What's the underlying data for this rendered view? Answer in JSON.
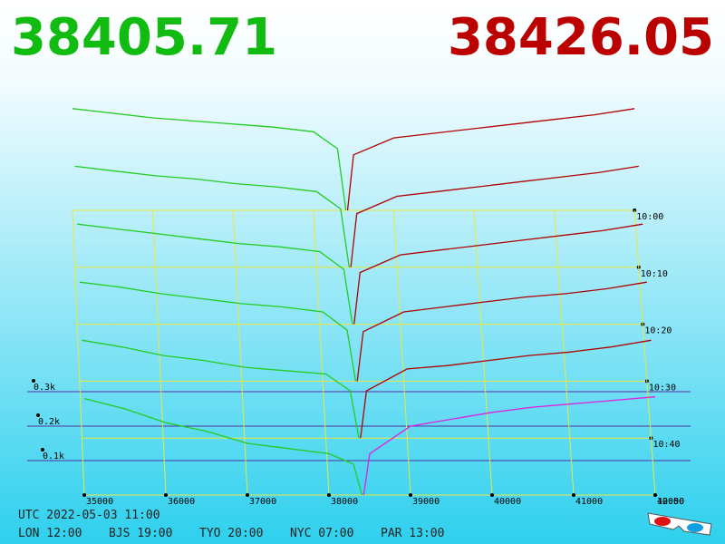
{
  "chart_data": {
    "type": "depth3d",
    "bid_price": 38405.71,
    "ask_price": 38426.05,
    "xticks": [
      35000,
      36000,
      37000,
      38000,
      39000,
      40000,
      41000,
      42000
    ],
    "zticks": [
      {
        "value": 100,
        "label": "0.1k"
      },
      {
        "value": 200,
        "label": "0.2k"
      },
      {
        "value": 300,
        "label": "0.3k"
      }
    ],
    "times": [
      "10:00",
      "10:10",
      "10:20",
      "10:30",
      "10:40",
      "10:50"
    ],
    "bids": {
      "color": "#22cc22",
      "prices": [
        35000,
        35500,
        36000,
        36500,
        37000,
        37500,
        38000,
        38300,
        38405.71
      ],
      "volumes": [
        [
          330,
          315,
          300,
          290,
          280,
          270,
          255,
          200,
          0
        ],
        [
          320,
          305,
          290,
          280,
          265,
          255,
          240,
          185,
          0
        ],
        [
          310,
          295,
          280,
          265,
          250,
          240,
          225,
          170,
          0
        ],
        [
          300,
          285,
          265,
          250,
          235,
          225,
          210,
          155,
          0
        ],
        [
          290,
          270,
          245,
          230,
          210,
          200,
          190,
          140,
          0
        ],
        [
          280,
          250,
          210,
          185,
          150,
          135,
          120,
          90,
          0
        ]
      ]
    },
    "asks": {
      "color": "#b00000",
      "prices": [
        38426.05,
        38500,
        39000,
        39500,
        40000,
        40500,
        41000,
        41500,
        42000
      ],
      "volumes": [
        [
          0,
          180,
          235,
          250,
          265,
          280,
          295,
          310,
          330
        ],
        [
          0,
          170,
          225,
          240,
          255,
          270,
          285,
          300,
          320
        ],
        [
          0,
          160,
          215,
          230,
          245,
          260,
          275,
          290,
          310
        ],
        [
          0,
          150,
          210,
          225,
          240,
          255,
          265,
          280,
          300
        ],
        [
          0,
          140,
          205,
          215,
          230,
          245,
          255,
          270,
          290
        ],
        [
          0,
          120,
          200,
          220,
          240,
          255,
          265,
          275,
          285
        ]
      ]
    }
  },
  "footer": {
    "utc": "UTC 2022-05-03 11:00",
    "zones": [
      "LON 12:00",
      "BJS 19:00",
      "TYO 20:00",
      "NYC 07:00",
      "PAR 13:00"
    ]
  }
}
